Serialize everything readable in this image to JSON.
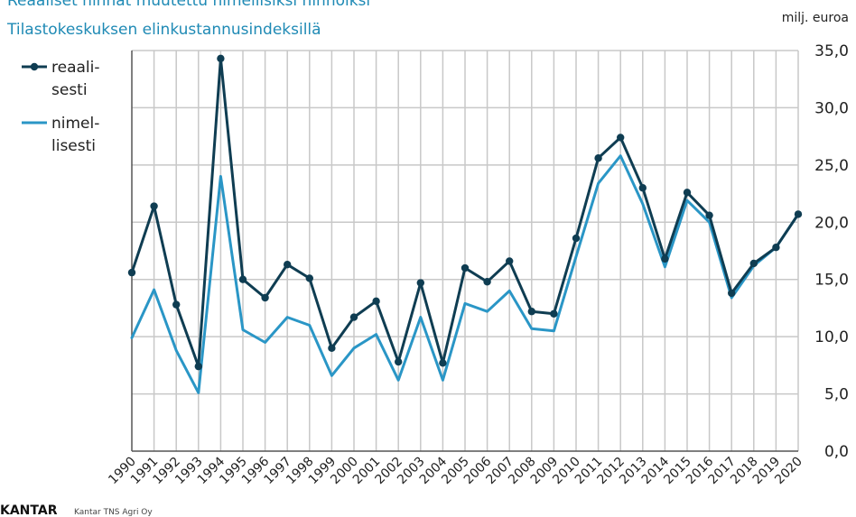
{
  "title_lines": [
    "Reaaliset hinnat muutettu nimellisiksi hinnoiksi",
    "Tilastokeskuksen elinkustannusindeksillä"
  ],
  "unit_label": "milj. euroa",
  "footer": {
    "brand": "KANTAR",
    "source": "Kantar TNS Agri Oy"
  },
  "colors": {
    "reaalisesti": "#0f3d52",
    "nimellisesti": "#2a96c6",
    "grid": "#c8c8c8",
    "axis": "#555555"
  },
  "chart_data": {
    "type": "line",
    "x": [
      "1990",
      "1991",
      "1992",
      "1993",
      "1994",
      "1995",
      "1996",
      "1997",
      "1998",
      "1999",
      "2000",
      "2001",
      "2002",
      "2003",
      "2004",
      "2005",
      "2006",
      "2007",
      "2008",
      "2009",
      "2010",
      "2011",
      "2012",
      "2013",
      "2014",
      "2015",
      "2016",
      "2017",
      "2018",
      "2019",
      "2020"
    ],
    "ylim": [
      0,
      35
    ],
    "yticks": [
      "0,0",
      "5,0",
      "10,0",
      "15,0",
      "20,0",
      "25,0",
      "30,0",
      "35,0"
    ],
    "ytick_values": [
      0,
      5,
      10,
      15,
      20,
      25,
      30,
      35
    ],
    "y_axis_side": "right",
    "grid": true,
    "legend_position": "top-left",
    "series": [
      {
        "key": "reaalisesti",
        "name_lines": [
          "reaali-",
          "sesti"
        ],
        "markers": true,
        "values": [
          15.6,
          21.4,
          12.8,
          7.4,
          34.3,
          15.0,
          13.4,
          16.3,
          15.1,
          9.0,
          11.7,
          13.1,
          7.8,
          14.7,
          7.7,
          16.0,
          14.8,
          16.6,
          12.2,
          12.0,
          18.6,
          25.6,
          27.4,
          23.0,
          16.8,
          22.6,
          20.6,
          13.8,
          16.4,
          17.8,
          20.7
        ]
      },
      {
        "key": "nimellisesti",
        "name_lines": [
          "nimel-",
          "lisesti"
        ],
        "markers": false,
        "values": [
          9.9,
          14.1,
          8.8,
          5.1,
          24.0,
          10.6,
          9.5,
          11.7,
          11.0,
          6.6,
          9.0,
          10.2,
          6.2,
          11.7,
          6.2,
          12.9,
          12.2,
          14.0,
          10.7,
          10.5,
          17.0,
          23.4,
          25.8,
          21.6,
          16.1,
          21.9,
          20.0,
          13.4,
          16.2,
          17.8,
          20.7
        ]
      }
    ]
  }
}
